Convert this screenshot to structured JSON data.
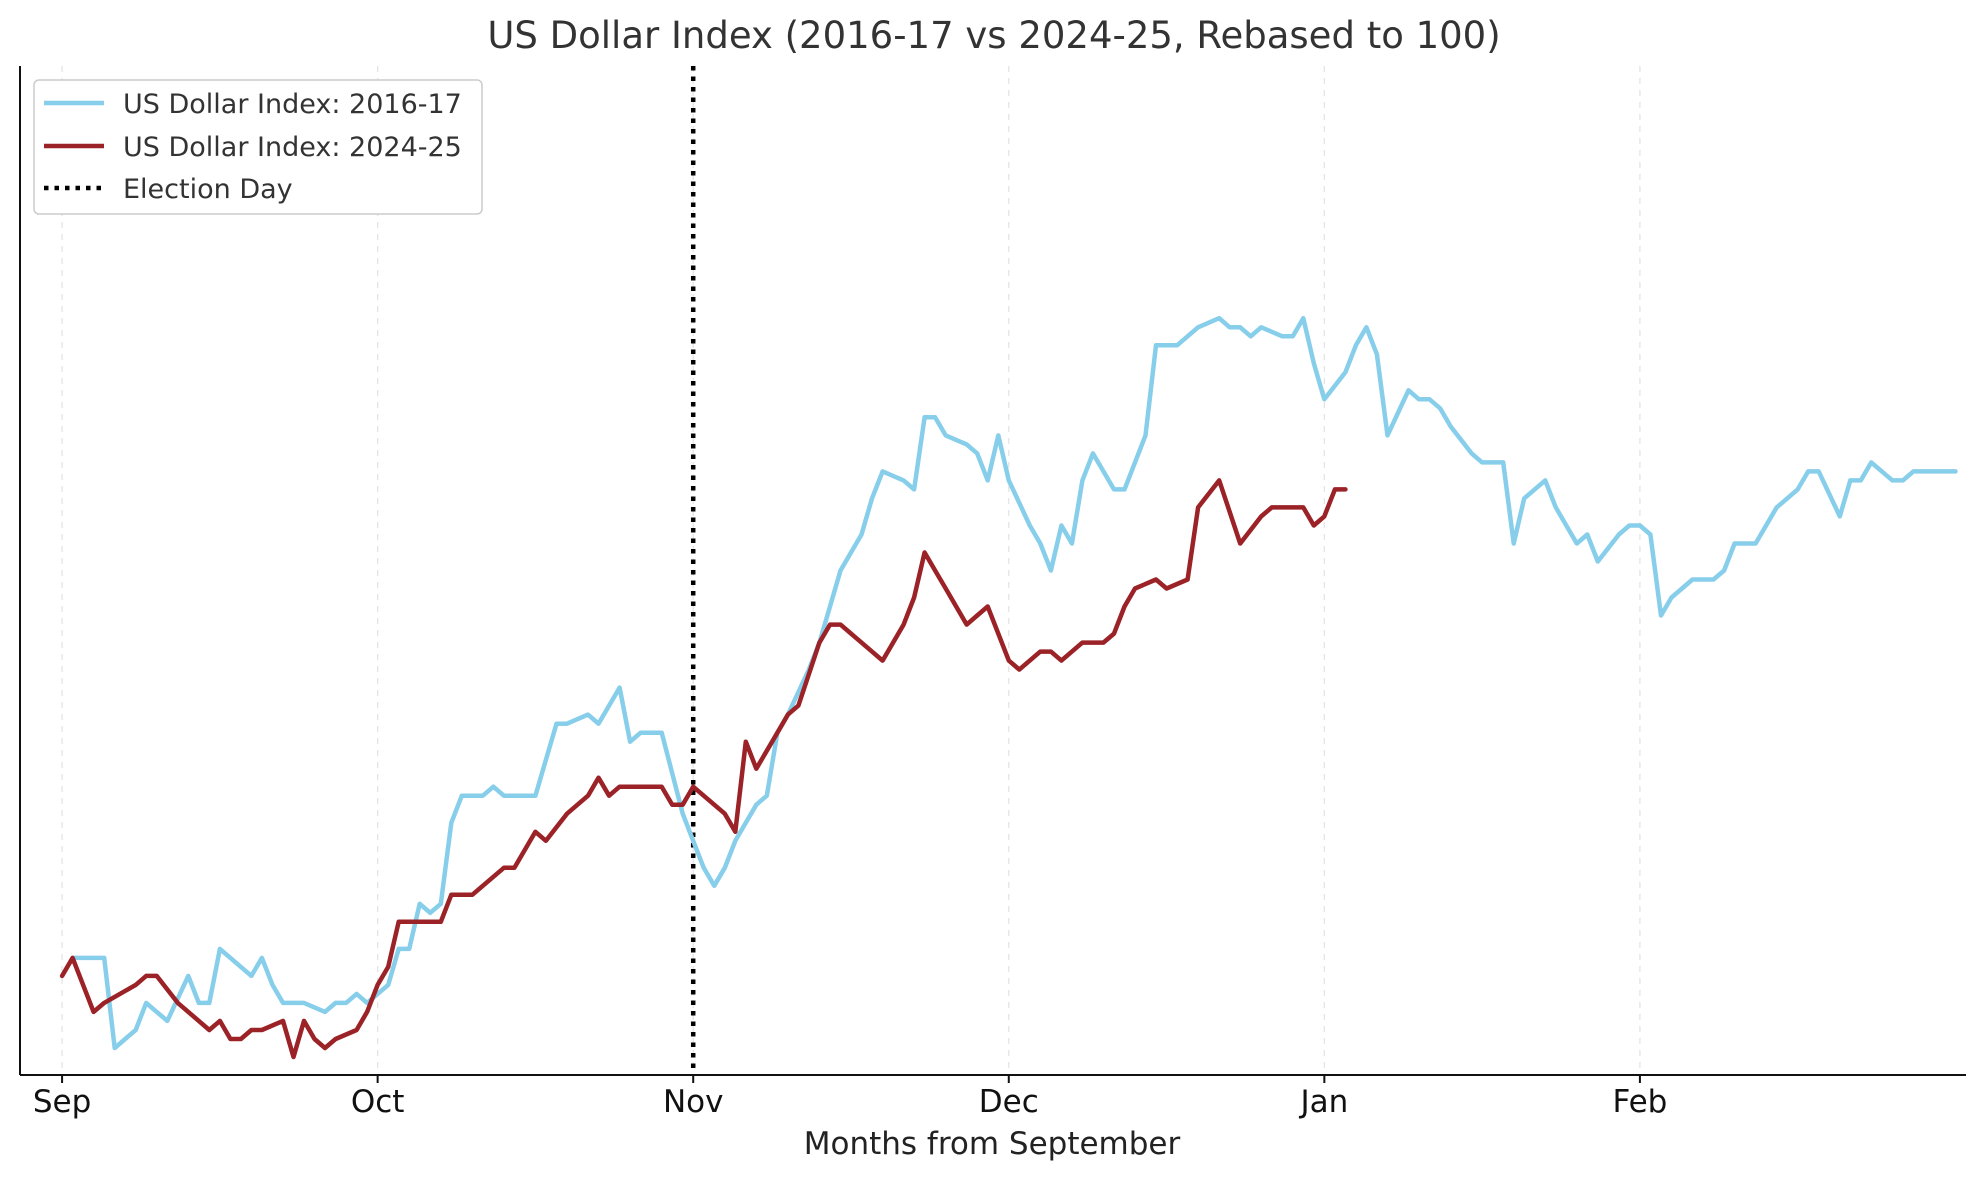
{
  "chart_data": {
    "type": "line",
    "title": "US Dollar Index (2016-17 vs 2024-25, Rebased to 100)",
    "xlabel": "Months from September",
    "ylabel": "",
    "x_unit": "days from September 1",
    "xlim": [
      -4,
      181
    ],
    "ylim": [
      94.5,
      105.7
    ],
    "y_ticks_visible": false,
    "grid": "vertical dashed at month ticks",
    "legend_position": "top-left",
    "x_ticks": [
      {
        "value": 0,
        "label": "Sep"
      },
      {
        "value": 30,
        "label": "Oct"
      },
      {
        "value": 60,
        "label": "Nov"
      },
      {
        "value": 90,
        "label": "Dec"
      },
      {
        "value": 120,
        "label": "Jan"
      },
      {
        "value": 150,
        "label": "Feb"
      }
    ],
    "vertical_line": {
      "x": 60,
      "label": "Election Day",
      "color": "#000000",
      "style": "dotted"
    },
    "series": [
      {
        "name": "US Dollar Index: 2016-17",
        "color": "#87CEEB",
        "x": [
          1,
          4,
          5,
          6,
          7,
          8,
          9,
          10,
          12,
          13,
          14,
          15,
          16,
          17,
          18,
          19,
          20,
          21,
          22,
          23,
          25,
          26,
          27,
          28,
          29,
          31,
          32,
          33,
          34,
          35,
          36,
          37,
          38,
          40,
          41,
          42,
          43,
          44,
          45,
          47,
          48,
          50,
          51,
          53,
          54,
          55,
          56,
          57,
          59,
          60,
          61,
          62,
          63,
          64,
          66,
          67,
          68,
          69,
          71,
          72,
          73,
          74,
          75,
          76,
          77,
          78,
          80,
          81,
          82,
          83,
          84,
          86,
          87,
          88,
          89,
          90,
          92,
          93,
          94,
          95,
          96,
          97,
          98,
          100,
          101,
          102,
          103,
          104,
          105,
          106,
          107,
          108,
          110,
          111,
          112,
          113,
          114,
          116,
          117,
          118,
          119,
          120,
          122,
          123,
          124,
          125,
          126,
          128,
          129,
          130,
          131,
          132,
          134,
          135,
          136,
          137,
          138,
          139,
          141,
          142,
          143,
          144,
          145,
          146,
          148,
          149,
          150,
          151,
          152,
          153,
          155,
          156,
          157,
          158,
          159,
          161,
          162,
          163,
          164,
          165,
          166,
          167,
          169,
          170,
          171,
          172,
          174,
          175,
          176,
          177,
          178,
          180
        ],
        "values": [
          95.8,
          95.8,
          94.8,
          94.9,
          95.0,
          95.3,
          95.2,
          95.1,
          95.6,
          95.3,
          95.3,
          95.9,
          95.8,
          95.7,
          95.6,
          95.8,
          95.5,
          95.3,
          95.3,
          95.3,
          95.2,
          95.3,
          95.3,
          95.4,
          95.3,
          95.5,
          95.9,
          95.9,
          96.4,
          96.3,
          96.4,
          97.3,
          97.6,
          97.6,
          97.7,
          97.6,
          97.6,
          97.6,
          97.6,
          98.4,
          98.4,
          98.5,
          98.4,
          98.8,
          98.2,
          98.3,
          98.3,
          98.3,
          97.4,
          97.1,
          96.8,
          96.6,
          96.8,
          97.1,
          97.5,
          97.6,
          98.3,
          98.5,
          99.0,
          99.3,
          99.7,
          100.1,
          100.3,
          100.5,
          100.9,
          101.2,
          101.1,
          101.0,
          101.8,
          101.8,
          101.6,
          101.5,
          101.4,
          101.1,
          101.6,
          101.1,
          100.6,
          100.4,
          100.1,
          100.6,
          100.4,
          101.1,
          101.4,
          101.0,
          101.0,
          101.3,
          101.6,
          102.6,
          102.6,
          102.6,
          102.7,
          102.8,
          102.9,
          102.8,
          102.8,
          102.7,
          102.8,
          102.7,
          102.7,
          102.9,
          102.4,
          102.0,
          102.3,
          102.6,
          102.8,
          102.5,
          101.6,
          102.1,
          102.0,
          102.0,
          101.9,
          101.7,
          101.4,
          101.3,
          101.3,
          101.3,
          100.4,
          100.9,
          101.1,
          100.8,
          100.6,
          100.4,
          100.5,
          100.2,
          100.5,
          100.6,
          100.6,
          100.5,
          99.6,
          99.8,
          100.0,
          100.0,
          100.0,
          100.1,
          100.4,
          100.4,
          100.6,
          100.8,
          100.9,
          101.0,
          101.2,
          101.2,
          100.7,
          101.1,
          101.1,
          101.3,
          101.1,
          101.1,
          101.2,
          101.2,
          101.2,
          101.2
        ]
      },
      {
        "name": "US Dollar Index: 2024-25",
        "color": "#9B2226",
        "x": [
          0,
          1,
          2,
          3,
          4,
          7,
          8,
          9,
          11,
          12,
          14,
          15,
          16,
          17,
          18,
          19,
          21,
          22,
          23,
          24,
          25,
          26,
          28,
          29,
          30,
          31,
          32,
          33,
          34,
          36,
          37,
          38,
          39,
          40,
          42,
          43,
          44,
          45,
          46,
          48,
          49,
          50,
          51,
          52,
          53,
          55,
          56,
          57,
          58,
          59,
          60,
          61,
          63,
          64,
          65,
          66,
          68,
          69,
          70,
          72,
          73,
          74,
          76,
          77,
          78,
          80,
          81,
          82,
          83,
          84,
          86,
          87,
          88,
          90,
          91,
          92,
          93,
          94,
          95,
          96,
          97,
          99,
          100,
          101,
          102,
          104,
          105,
          107,
          108,
          110,
          112,
          114,
          115,
          116,
          118,
          119,
          120,
          121,
          122
        ],
        "values": [
          95.6,
          95.8,
          95.5,
          95.2,
          95.3,
          95.5,
          95.6,
          95.6,
          95.3,
          95.2,
          95.0,
          95.1,
          94.9,
          94.9,
          95.0,
          95.0,
          95.1,
          94.7,
          95.1,
          94.9,
          94.8,
          94.9,
          95.0,
          95.2,
          95.5,
          95.7,
          96.2,
          96.2,
          96.2,
          96.2,
          96.5,
          96.5,
          96.5,
          96.6,
          96.8,
          96.8,
          97.0,
          97.2,
          97.1,
          97.4,
          97.5,
          97.6,
          97.8,
          97.6,
          97.7,
          97.7,
          97.7,
          97.7,
          97.5,
          97.5,
          97.7,
          97.6,
          97.4,
          97.2,
          98.2,
          97.9,
          98.3,
          98.5,
          98.6,
          99.3,
          99.5,
          99.5,
          99.3,
          99.2,
          99.1,
          99.5,
          99.8,
          100.3,
          100.1,
          99.9,
          99.5,
          99.6,
          99.7,
          99.1,
          99.0,
          99.1,
          99.2,
          99.2,
          99.1,
          99.2,
          99.3,
          99.3,
          99.4,
          99.7,
          99.9,
          100.0,
          99.9,
          100.0,
          100.8,
          101.1,
          100.4,
          100.7,
          100.8,
          100.8,
          100.8,
          100.6,
          100.7,
          101.0,
          101.0
        ]
      }
    ]
  }
}
